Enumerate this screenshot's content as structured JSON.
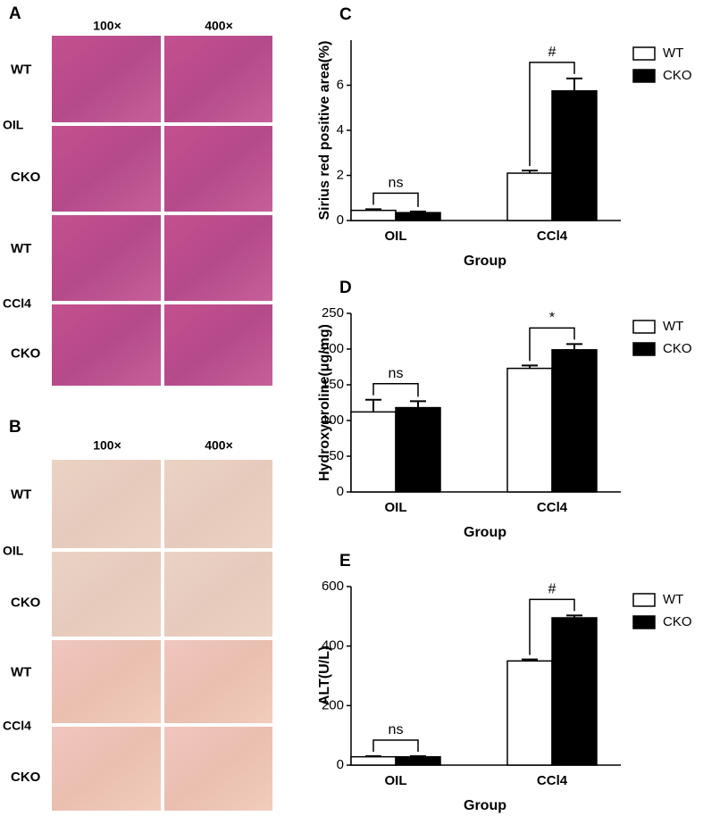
{
  "histology": [
    {
      "label": "A",
      "columns": [
        "100×",
        "400×"
      ],
      "rows": [
        {
          "group": "OIL",
          "genotypes": [
            "WT",
            "CKO"
          ]
        },
        {
          "group": "CCl4",
          "genotypes": [
            "WT",
            "CKO"
          ]
        }
      ]
    },
    {
      "label": "B",
      "columns": [
        "100×",
        "400×"
      ],
      "rows": [
        {
          "group": "OIL",
          "genotypes": [
            "WT",
            "CKO"
          ]
        },
        {
          "group": "CCl4",
          "genotypes": [
            "WT",
            "CKO"
          ]
        }
      ]
    }
  ],
  "chart_data": [
    {
      "type": "bar",
      "panel_label": "C",
      "ylabel": "Sirius red positive area(%)",
      "xlabel": "Group",
      "categories": [
        "OIL",
        "CCl4"
      ],
      "series": [
        {
          "name": "WT",
          "color": "#ffffff",
          "values": [
            0.45,
            2.1
          ],
          "errors": [
            0.05,
            0.12
          ]
        },
        {
          "name": "CKO",
          "color": "#000000",
          "values": [
            0.35,
            5.75
          ],
          "errors": [
            0.05,
            0.55
          ]
        }
      ],
      "ylim": [
        0,
        8
      ],
      "yticks": [
        0,
        2,
        4,
        6
      ],
      "legend": "right",
      "annotations": [
        {
          "text": "ns",
          "category": 0
        },
        {
          "text": "#",
          "category": 1
        }
      ]
    },
    {
      "type": "bar",
      "panel_label": "D",
      "ylabel": "Hydroxyproline(μg/mg)",
      "xlabel": "Group",
      "categories": [
        "OIL",
        "CCl4"
      ],
      "series": [
        {
          "name": "WT",
          "color": "#ffffff",
          "values": [
            112,
            173
          ],
          "errors": [
            17,
            4
          ]
        },
        {
          "name": "CKO",
          "color": "#000000",
          "values": [
            118,
            199
          ],
          "errors": [
            9,
            8
          ]
        }
      ],
      "ylim": [
        0,
        250
      ],
      "yticks": [
        0,
        50,
        100,
        150,
        200,
        250
      ],
      "legend": "right",
      "annotations": [
        {
          "text": "ns",
          "category": 0
        },
        {
          "text": "*",
          "category": 1
        }
      ]
    },
    {
      "type": "bar",
      "panel_label": "E",
      "ylabel": "ALT(U/L)",
      "xlabel": "Group",
      "categories": [
        "OIL",
        "CCl4"
      ],
      "series": [
        {
          "name": "WT",
          "color": "#ffffff",
          "values": [
            28,
            350
          ],
          "errors": [
            2,
            5
          ]
        },
        {
          "name": "CKO",
          "color": "#000000",
          "values": [
            28,
            495
          ],
          "errors": [
            2,
            8
          ]
        }
      ],
      "ylim": [
        0,
        600
      ],
      "yticks": [
        0,
        200,
        400,
        600
      ],
      "legend": "right",
      "annotations": [
        {
          "text": "ns",
          "category": 0
        },
        {
          "text": "#",
          "category": 1
        }
      ]
    }
  ]
}
